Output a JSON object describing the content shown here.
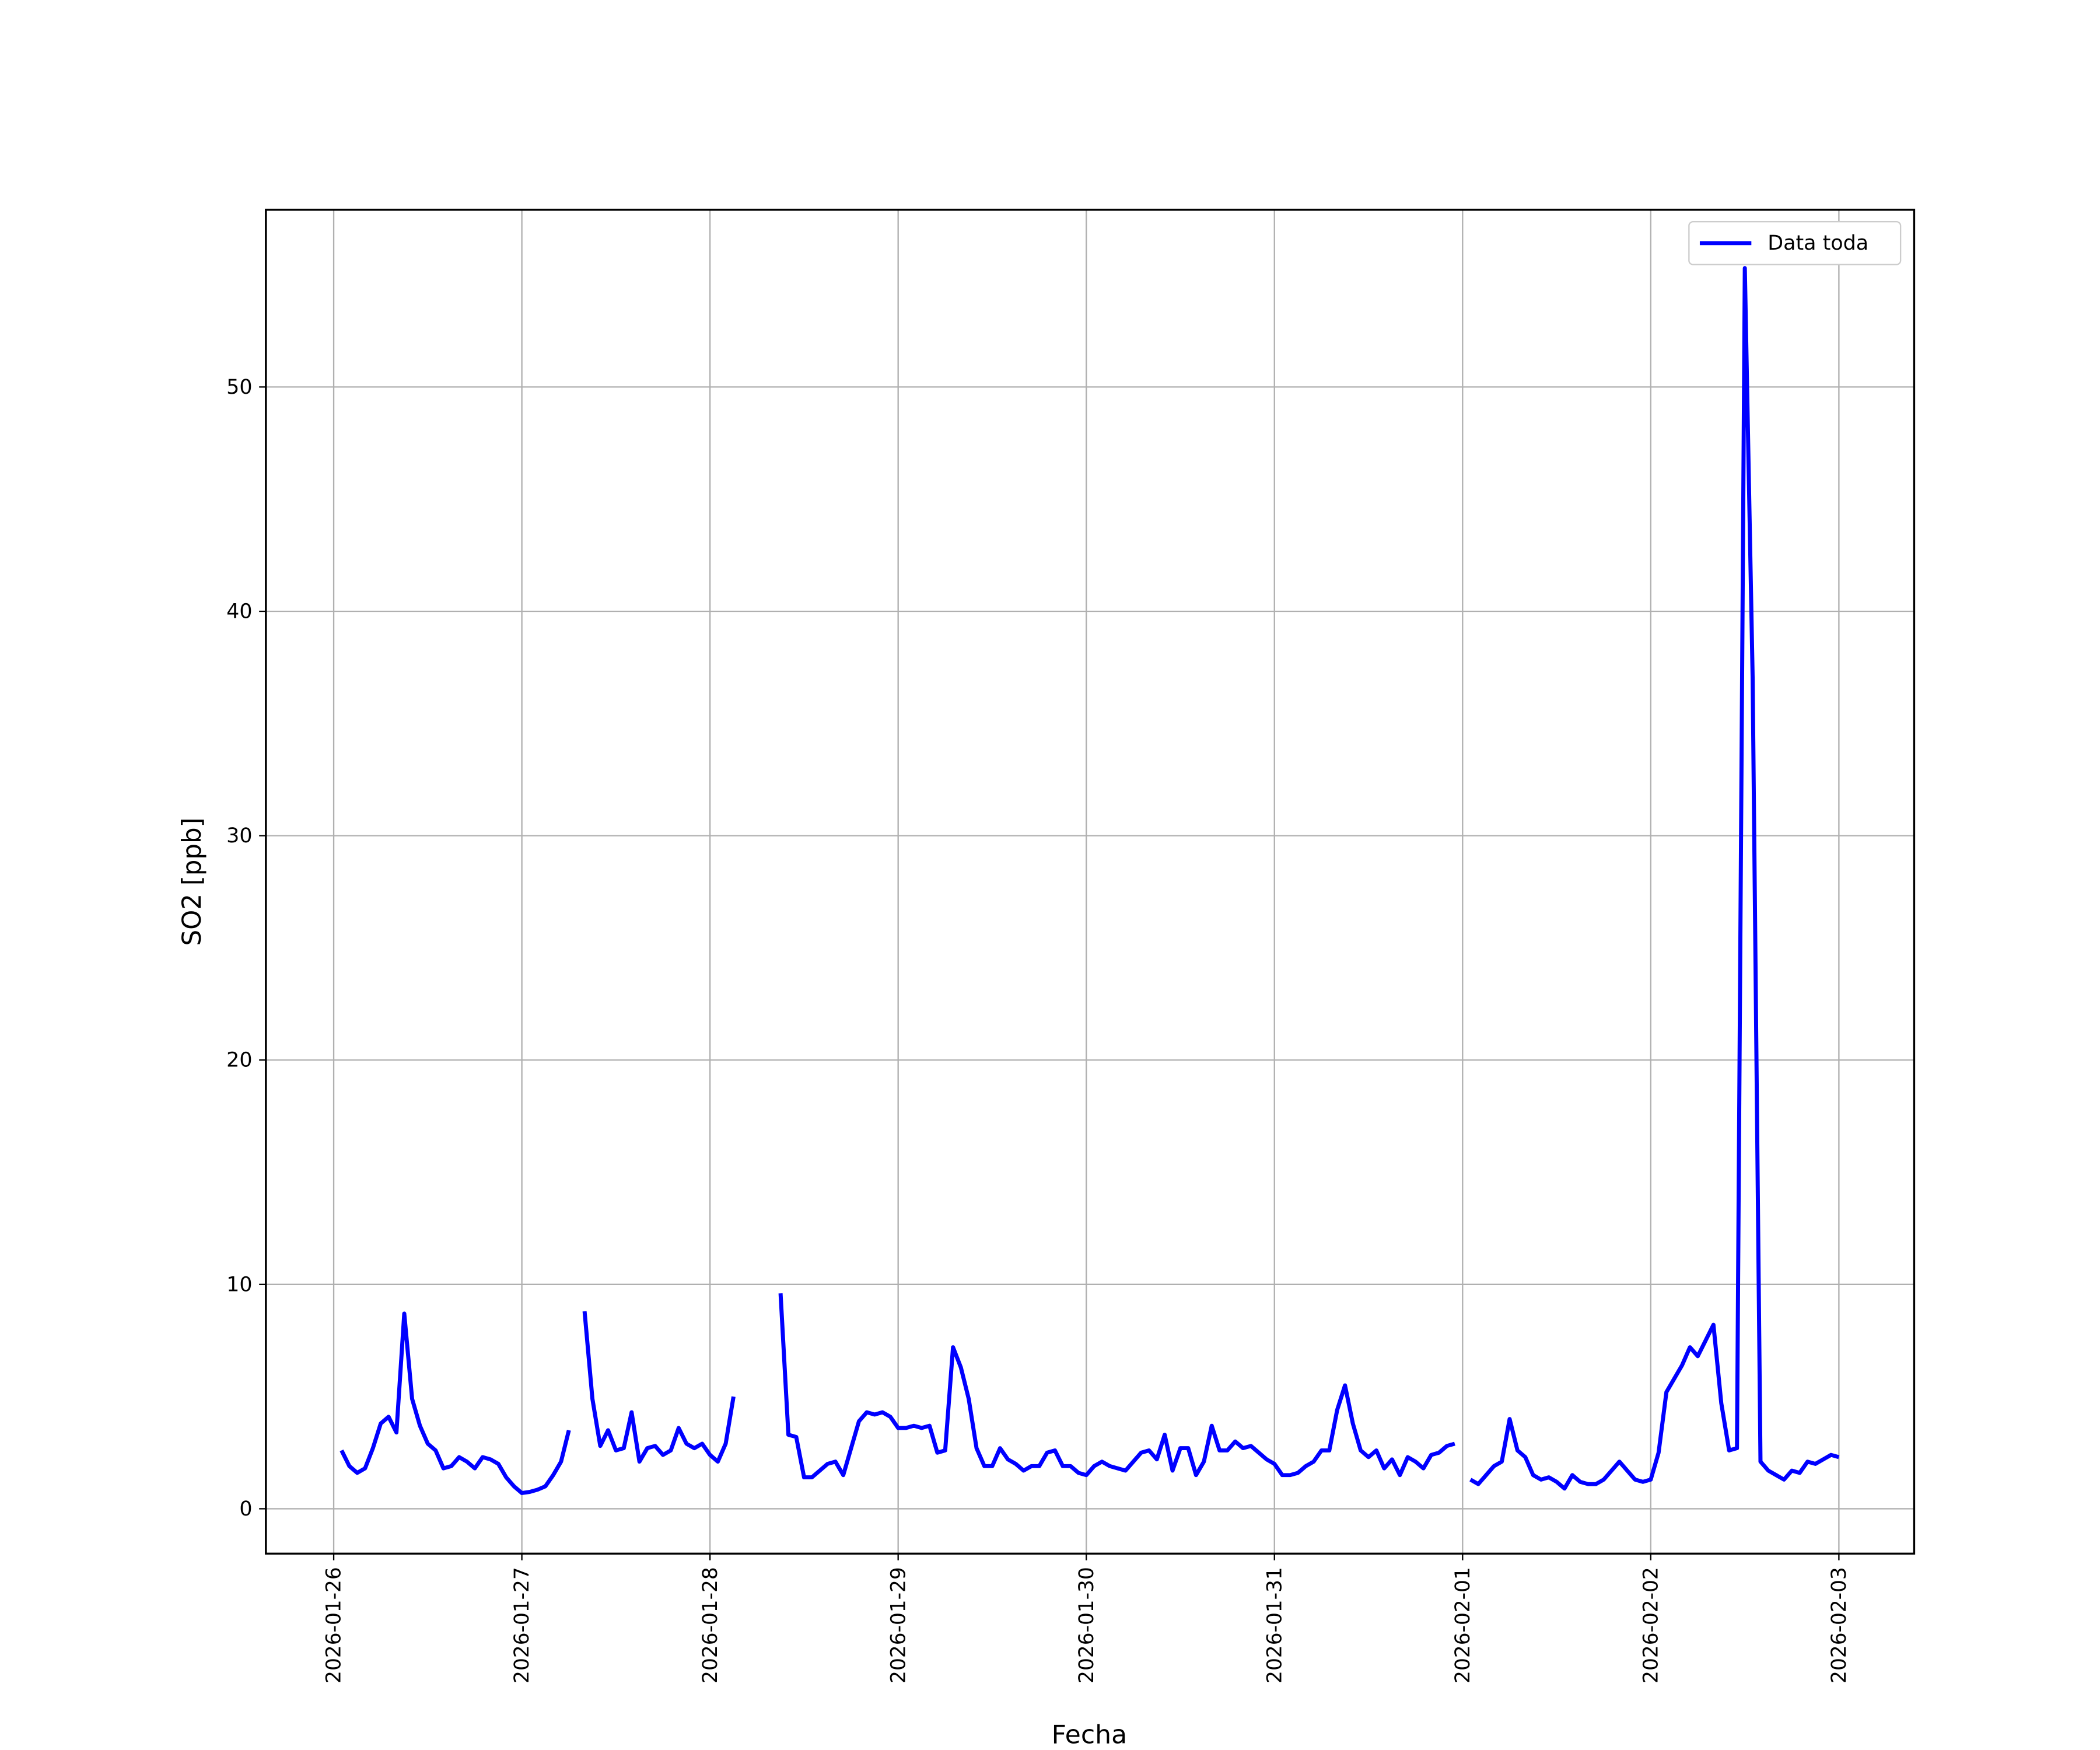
{
  "chart_data": {
    "type": "line",
    "xlabel": "Fecha",
    "ylabel": "SO2 [ppb]",
    "x": [
      1,
      2,
      3,
      4,
      5,
      6,
      7,
      8,
      9,
      10,
      11,
      12,
      13,
      14,
      15,
      16,
      17,
      18,
      19,
      20,
      21,
      22,
      23,
      24,
      25,
      26,
      27,
      28,
      29,
      30,
      31,
      32,
      33,
      34,
      35,
      36,
      37,
      38,
      39,
      40,
      41,
      42,
      43,
      44,
      45,
      46,
      47,
      48,
      49,
      50,
      51,
      52,
      53,
      54,
      55,
      56,
      57,
      58,
      59,
      60,
      61,
      62,
      63,
      64,
      65,
      66,
      67,
      68,
      69,
      70,
      71,
      72,
      73,
      74,
      75,
      76,
      77,
      78,
      79,
      80,
      81,
      82,
      83,
      84,
      85,
      86,
      87,
      88,
      89,
      90,
      91,
      92,
      93,
      94,
      95,
      96,
      97,
      98,
      99,
      100,
      101,
      102,
      103,
      104,
      105,
      106,
      107,
      108,
      109,
      110,
      111,
      112,
      113,
      114,
      115,
      116,
      117,
      118,
      119,
      120,
      121,
      122,
      123,
      124,
      125,
      126,
      127,
      128,
      129,
      130,
      131,
      132,
      133,
      134,
      135,
      136,
      137,
      138,
      139,
      140,
      141,
      142,
      143,
      144,
      145,
      146,
      147,
      148,
      149,
      150,
      151,
      152,
      153,
      154,
      155,
      156,
      157,
      158,
      159,
      160,
      161,
      162,
      163,
      164,
      165,
      166,
      167,
      168,
      169,
      170,
      171,
      172,
      173,
      174,
      175,
      176,
      177,
      178,
      179,
      180,
      181,
      182,
      183,
      184,
      185,
      186,
      187,
      188,
      189,
      190,
      191,
      192
    ],
    "series": [
      {
        "name": "Data toda",
        "color": "#0000ff",
        "values": [
          2.6,
          1.9,
          1.6,
          1.8,
          2.7,
          3.8,
          4.1,
          3.4,
          8.7,
          4.9,
          3.7,
          2.9,
          2.6,
          1.8,
          1.9,
          2.3,
          2.1,
          1.8,
          2.3,
          2.2,
          2.0,
          1.4,
          1.0,
          0.7,
          0.75,
          0.85,
          1.0,
          1.5,
          2.1,
          3.5,
          null,
          8.8,
          4.9,
          2.8,
          3.5,
          2.6,
          2.7,
          4.3,
          2.1,
          2.7,
          2.8,
          2.4,
          2.6,
          3.6,
          2.9,
          2.7,
          2.9,
          2.4,
          2.1,
          2.9,
          5.0,
          null,
          null,
          null,
          null,
          null,
          9.6,
          3.3,
          3.2,
          1.4,
          1.4,
          1.7,
          2.0,
          2.1,
          1.5,
          2.7,
          3.9,
          4.3,
          4.2,
          4.3,
          4.1,
          3.6,
          3.6,
          3.7,
          3.6,
          3.7,
          2.5,
          2.6,
          7.2,
          6.3,
          4.9,
          2.7,
          1.9,
          1.9,
          2.7,
          2.2,
          2.0,
          1.7,
          1.9,
          1.9,
          2.5,
          2.6,
          1.9,
          1.9,
          1.6,
          1.5,
          1.9,
          2.1,
          1.9,
          1.8,
          1.7,
          2.1,
          2.5,
          2.6,
          2.2,
          3.3,
          1.7,
          2.7,
          2.7,
          1.5,
          2.1,
          3.7,
          2.6,
          2.6,
          3.0,
          2.7,
          2.8,
          2.5,
          2.2,
          2.0,
          1.5,
          1.5,
          1.6,
          1.9,
          2.1,
          2.6,
          2.6,
          4.4,
          5.5,
          3.8,
          2.6,
          2.3,
          2.6,
          1.8,
          2.2,
          1.5,
          2.3,
          2.1,
          1.8,
          2.4,
          2.5,
          2.8,
          2.9,
          null,
          1.3,
          1.1,
          1.5,
          1.9,
          2.1,
          4.0,
          2.6,
          2.3,
          1.5,
          1.3,
          1.4,
          1.2,
          0.9,
          1.5,
          1.2,
          1.1,
          1.1,
          1.3,
          1.7,
          2.1,
          1.7,
          1.3,
          1.2,
          1.3,
          2.5,
          5.2,
          5.8,
          6.4,
          7.2,
          6.8,
          7.5,
          8.2,
          4.7,
          2.6,
          2.7,
          55.3,
          37.0,
          2.1,
          1.7,
          1.5,
          1.3,
          1.7,
          1.6,
          2.1,
          2.0,
          2.2,
          2.4,
          2.3
        ]
      }
    ],
    "xlim": [
      -8.65,
      201.6
    ],
    "xticks": [
      {
        "value": 0,
        "label": "2026-01-26"
      },
      {
        "value": 24,
        "label": "2026-01-27"
      },
      {
        "value": 48,
        "label": "2026-01-28"
      },
      {
        "value": 72,
        "label": "2026-01-29"
      },
      {
        "value": 96,
        "label": "2026-01-30"
      },
      {
        "value": 120,
        "label": "2026-01-31"
      },
      {
        "value": 144,
        "label": "2026-02-01"
      },
      {
        "value": 168,
        "label": "2026-02-02"
      },
      {
        "value": 192,
        "label": "2026-02-03"
      }
    ],
    "ylim": [
      -2.0,
      57.9
    ],
    "yticks": [
      0,
      10,
      20,
      30,
      40,
      50
    ],
    "grid": true,
    "legend": "upper right"
  }
}
